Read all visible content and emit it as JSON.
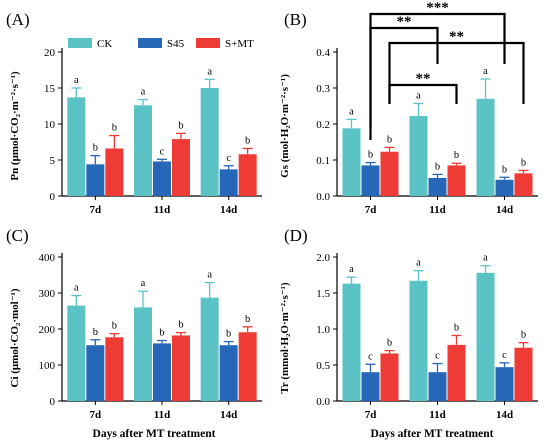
{
  "figure": {
    "panel_letters": [
      "(A)",
      "(B)",
      "(C)",
      "(D)"
    ],
    "x_axis_label": "Days after MT treatment"
  },
  "colors": {
    "CK": "#5bc2c6",
    "S45": "#2667b8",
    "S+MT": "#ee3b36",
    "error": "#555555",
    "bracket": "#000000"
  },
  "chart_data": [
    {
      "type": "bar",
      "panel": "(A)",
      "ylabel": "Pn  (μmol·CO₂·m⁻²·s⁻¹)",
      "ylim": [
        0,
        20
      ],
      "yticks": [
        0,
        5,
        10,
        15,
        20
      ],
      "categories": [
        "7d",
        "11d",
        "14d"
      ],
      "legend": {
        "placement": "top",
        "entries": [
          "CK",
          "S45",
          "S+MT"
        ]
      },
      "series": [
        {
          "name": "CK",
          "values": [
            13.7,
            12.6,
            15.0
          ],
          "errors": [
            1.3,
            0.8,
            1.2
          ],
          "letters": [
            "a",
            "a",
            "a"
          ]
        },
        {
          "name": "S45",
          "values": [
            4.4,
            4.8,
            3.7
          ],
          "errors": [
            1.2,
            0.3,
            0.5
          ],
          "letters": [
            "b",
            "c",
            "c"
          ]
        },
        {
          "name": "S+MT",
          "values": [
            6.6,
            7.9,
            5.8
          ],
          "errors": [
            1.8,
            0.8,
            0.8
          ],
          "letters": [
            "b",
            "b",
            "b"
          ]
        }
      ]
    },
    {
      "type": "bar",
      "panel": "(B)",
      "ylabel": "Gs  (mol·H₂O·m⁻²·s⁻¹)",
      "ylim": [
        0,
        0.4
      ],
      "yticks": [
        "0.0",
        "0.1",
        "0.2",
        "0.3",
        "0.4"
      ],
      "categories": [
        "7d",
        "11d",
        "14d"
      ],
      "series": [
        {
          "name": "CK",
          "values": [
            0.188,
            0.222,
            0.27
          ],
          "errors": [
            0.025,
            0.035,
            0.055
          ],
          "letters": [
            "a",
            "a",
            "a"
          ]
        },
        {
          "name": "S45",
          "values": [
            0.085,
            0.05,
            0.045
          ],
          "errors": [
            0.008,
            0.01,
            0.007
          ],
          "letters": [
            "b",
            "b",
            "b"
          ]
        },
        {
          "name": "S+MT",
          "values": [
            0.123,
            0.085,
            0.063
          ],
          "errors": [
            0.012,
            0.006,
            0.008
          ],
          "letters": [
            "b",
            "b",
            "b"
          ]
        }
      ],
      "significance": [
        {
          "from": [
            "7d",
            "S+MT"
          ],
          "to": [
            "11d",
            "S+MT"
          ],
          "label": "**"
        },
        {
          "from": [
            "7d",
            "S+MT"
          ],
          "to": [
            "14d",
            "S+MT"
          ],
          "label": "**"
        },
        {
          "from": [
            "7d",
            "S45"
          ],
          "to": [
            "11d",
            "S45"
          ],
          "label": "**"
        },
        {
          "from": [
            "7d",
            "S45"
          ],
          "to": [
            "14d",
            "S45"
          ],
          "label": "***"
        }
      ]
    },
    {
      "type": "bar",
      "panel": "(C)",
      "ylabel": "Ci  (μmol·CO₂·mol⁻¹)",
      "ylim": [
        0,
        400
      ],
      "yticks": [
        0,
        100,
        200,
        300,
        400
      ],
      "categories": [
        "7d",
        "11d",
        "14d"
      ],
      "xlabel": "Days after MT treatment",
      "series": [
        {
          "name": "CK",
          "values": [
            265,
            260,
            287
          ],
          "errors": [
            28,
            45,
            42
          ],
          "letters": [
            "a",
            "a",
            "a"
          ]
        },
        {
          "name": "S45",
          "values": [
            155,
            160,
            155
          ],
          "errors": [
            15,
            8,
            10
          ],
          "letters": [
            "b",
            "b",
            "b"
          ]
        },
        {
          "name": "S+MT",
          "values": [
            177,
            182,
            191
          ],
          "errors": [
            10,
            8,
            15
          ],
          "letters": [
            "b",
            "b",
            "b"
          ]
        }
      ]
    },
    {
      "type": "bar",
      "panel": "(D)",
      "ylabel": "Tr  (mmol·H₂O·m⁻²·s⁻¹)",
      "ylim": [
        0,
        2.0
      ],
      "yticks": [
        "0.0",
        "0.5",
        "1.0",
        "1.5",
        "2.0"
      ],
      "categories": [
        "7d",
        "11d",
        "14d"
      ],
      "xlabel": "Days after MT treatment",
      "series": [
        {
          "name": "CK",
          "values": [
            1.63,
            1.67,
            1.78
          ],
          "errors": [
            0.09,
            0.14,
            0.1
          ],
          "letters": [
            "a",
            "a",
            "a"
          ]
        },
        {
          "name": "S45",
          "values": [
            0.4,
            0.4,
            0.47
          ],
          "errors": [
            0.11,
            0.12,
            0.06
          ],
          "letters": [
            "c",
            "c",
            "c"
          ]
        },
        {
          "name": "S+MT",
          "values": [
            0.66,
            0.78,
            0.74
          ],
          "errors": [
            0.04,
            0.13,
            0.07
          ],
          "letters": [
            "b",
            "b",
            "b"
          ]
        }
      ]
    }
  ]
}
